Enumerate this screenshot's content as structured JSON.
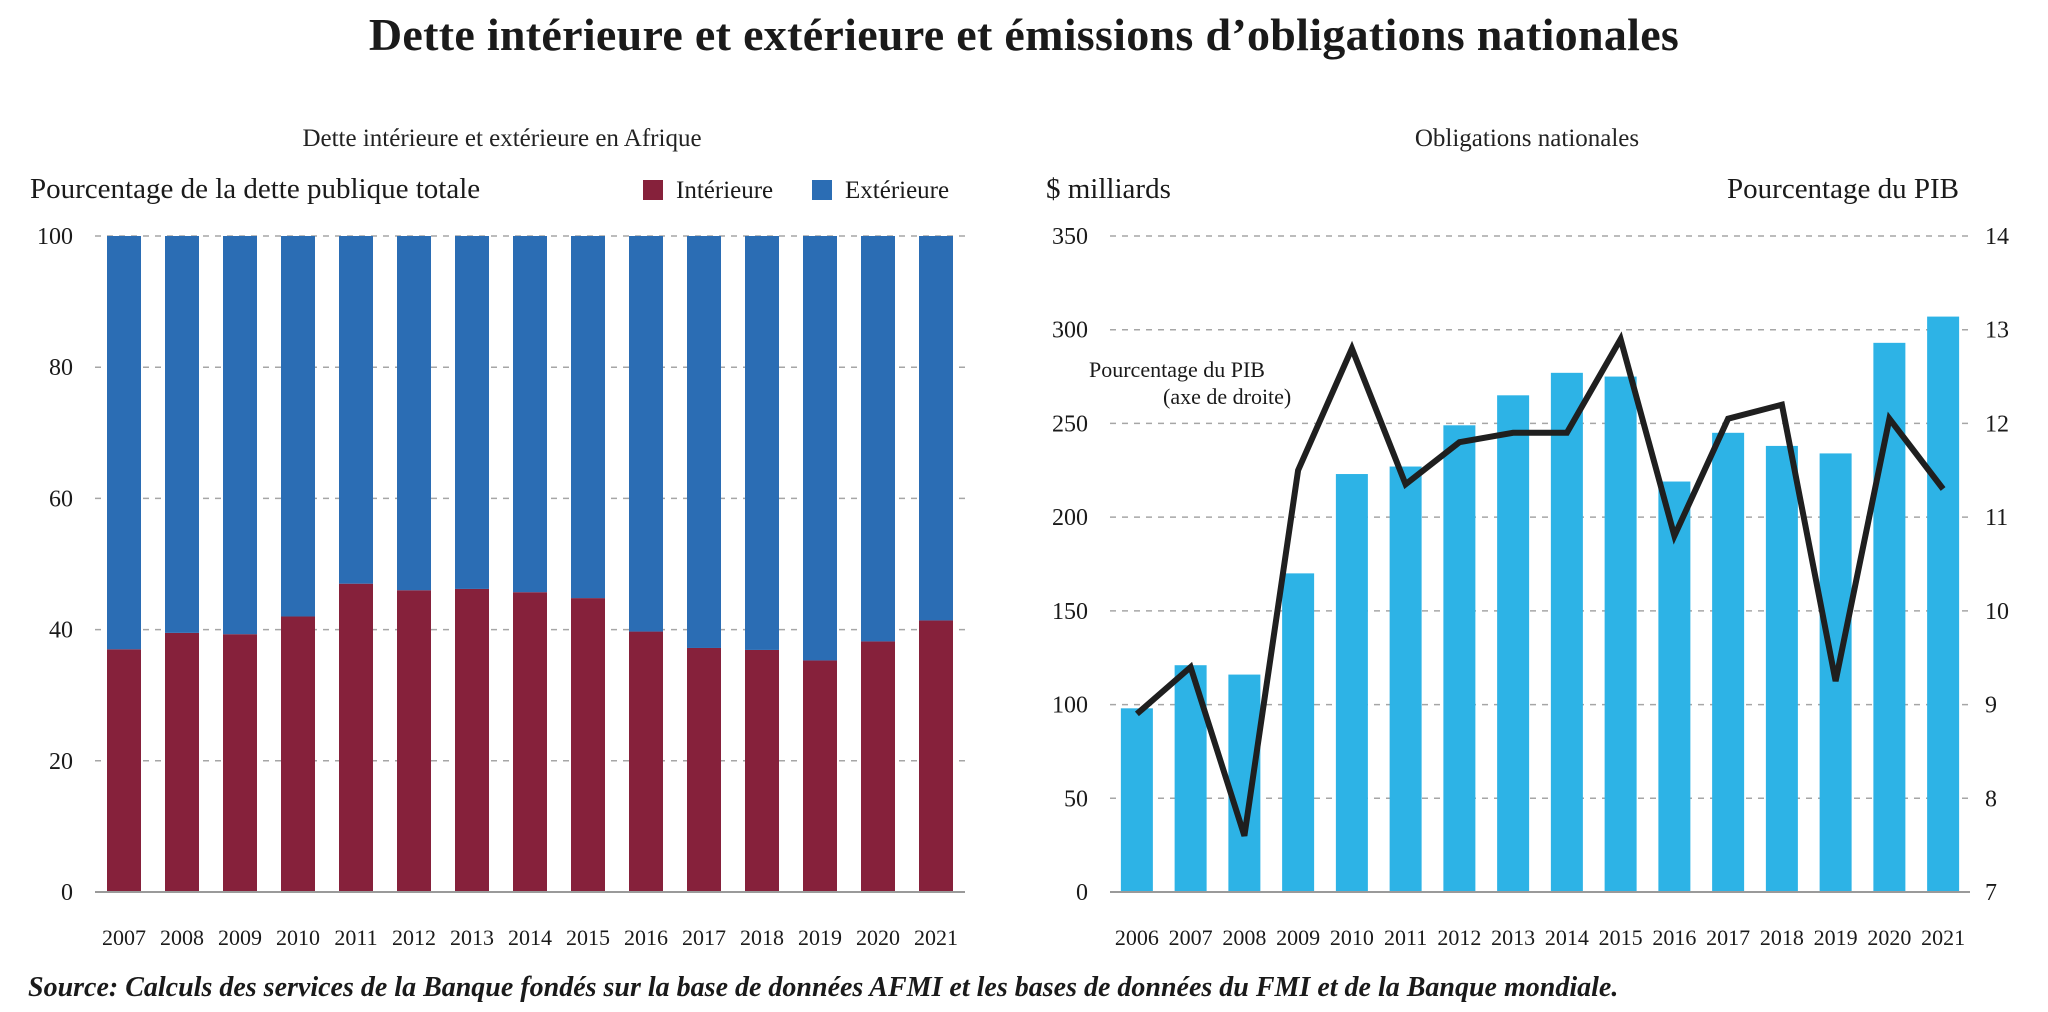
{
  "title": "Dette intérieure et extérieure et émissions d’obligations nationales",
  "source": "Source: Calculs des services de la Banque fondés sur la base de données AFMI et les bases de données du FMI et de la Banque mondiale.",
  "colors": {
    "domestic": "#86213b",
    "external": "#2b6db4",
    "bonds": "#2db3e6",
    "line": "#1f1f1f"
  },
  "chart_data": [
    {
      "type": "bar",
      "stacked": true,
      "title": "Dette intérieure et extérieure en Afrique",
      "ylabel": "Pourcentage de la dette publique totale",
      "ylim": [
        0,
        100
      ],
      "yticks": [
        "0",
        "20",
        "40",
        "60",
        "80",
        "100"
      ],
      "grid": true,
      "legend_position": "top-right",
      "categories": [
        "2007",
        "2008",
        "2009",
        "2010",
        "2011",
        "2012",
        "2013",
        "2014",
        "2015",
        "2016",
        "2017",
        "2018",
        "2019",
        "2020",
        "2021"
      ],
      "series": [
        {
          "name": "Intérieure",
          "values": [
            37,
            39.5,
            39.3,
            42,
            47,
            46,
            46.2,
            45.7,
            44.8,
            39.7,
            37.2,
            36.9,
            35.3,
            38.2,
            41.4
          ]
        },
        {
          "name": "Extérieure",
          "values": [
            63,
            60.5,
            60.7,
            58,
            53,
            54,
            53.8,
            54.3,
            55.2,
            60.3,
            62.8,
            63.1,
            64.7,
            61.8,
            58.6
          ]
        }
      ]
    },
    {
      "type": "bar",
      "title": "Obligations nationales",
      "ylabel": "$ milliards",
      "y2label": "Pourcentage du PIB",
      "ylim": [
        0,
        350
      ],
      "y2lim": [
        7,
        14
      ],
      "yticks": [
        "0",
        "50",
        "100",
        "150",
        "200",
        "250",
        "300",
        "350"
      ],
      "y2ticks": [
        "7",
        "8",
        "9",
        "10",
        "11",
        "12",
        "13",
        "14"
      ],
      "grid": true,
      "categories": [
        "2006",
        "2007",
        "2008",
        "2009",
        "2010",
        "2011",
        "2012",
        "2013",
        "2014",
        "2015",
        "2016",
        "2017",
        "2018",
        "2019",
        "2020",
        "2021"
      ],
      "series": [
        {
          "type": "bar",
          "axis": "left",
          "values": [
            98,
            121,
            116,
            170,
            223,
            227,
            249,
            265,
            277,
            275,
            219,
            245,
            238,
            234,
            293,
            307
          ]
        },
        {
          "type": "line",
          "axis": "right",
          "values": [
            8.9,
            9.4,
            7.6,
            11.5,
            12.8,
            11.35,
            11.8,
            11.9,
            11.9,
            12.9,
            10.8,
            12.05,
            12.2,
            9.25,
            12.05,
            11.3
          ]
        }
      ],
      "annotation": [
        "Pourcentage du PIB",
        "(axe de droite)"
      ]
    }
  ]
}
